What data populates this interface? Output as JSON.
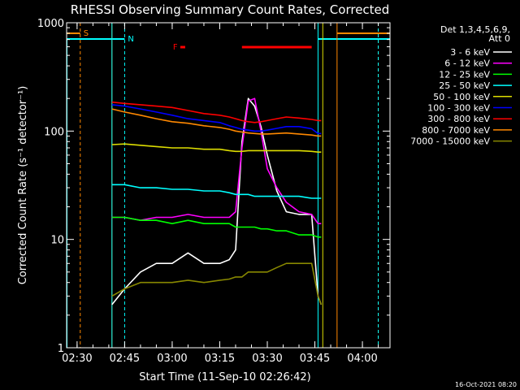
{
  "chart_data": {
    "type": "line",
    "title": "RHESSI Observing Summary Count Rates, Corrected",
    "xlabel": "Start Time (11-Sep-10 02:26:42)",
    "ylabel": "Corrected Count Rate (s⁻¹ detector⁻¹)",
    "y_scale": "log",
    "ylim": [
      1,
      1000
    ],
    "xlim_minutes_after_start": [
      0,
      102
    ],
    "x_ticks": [
      "02:30",
      "02:45",
      "03:00",
      "03:15",
      "03:30",
      "03:45",
      "04:00"
    ],
    "y_ticks": [
      "1",
      "10",
      "100",
      "1000"
    ],
    "legend_header": [
      "Det 1,3,4,5,6,9,",
      "Att 0"
    ],
    "legend_position": "top-right",
    "footer_date": "16-Oct-2021 08:20",
    "markers": {
      "saa": "S",
      "night": "N",
      "flare": "F"
    },
    "x_times": [
      "02:41",
      "02:45",
      "02:50",
      "02:55",
      "03:00",
      "03:05",
      "03:10",
      "03:15",
      "03:18",
      "03:20",
      "03:22",
      "03:24",
      "03:26",
      "03:28",
      "03:30",
      "03:33",
      "03:36",
      "03:40",
      "03:44",
      "03:46",
      "03:47"
    ],
    "series": [
      {
        "name": "3 - 6 keV",
        "color": "#ffffff",
        "values": [
          2.5,
          3.5,
          5,
          6,
          6,
          7.5,
          6,
          6,
          6.5,
          8,
          80,
          200,
          170,
          110,
          60,
          28,
          18,
          17,
          17,
          3,
          2.5
        ]
      },
      {
        "name": "6 - 12 keV",
        "color": "#ff00ff",
        "values": [
          16,
          16,
          15,
          16,
          16,
          17,
          16,
          16,
          16,
          18,
          70,
          190,
          200,
          100,
          45,
          30,
          22,
          18,
          17,
          14,
          14
        ]
      },
      {
        "name": "12 - 25 keV",
        "color": "#00ff00",
        "values": [
          16,
          16,
          15,
          15,
          14,
          15,
          14,
          14,
          14,
          13,
          13,
          13,
          13,
          12.5,
          12.5,
          12,
          12,
          11,
          11,
          10.5,
          10.5
        ]
      },
      {
        "name": "25 - 50 keV",
        "color": "#00ffff",
        "values": [
          32,
          32,
          30,
          30,
          29,
          29,
          28,
          28,
          27,
          26,
          26,
          26,
          25,
          25,
          25,
          25,
          25,
          25,
          24,
          24,
          24
        ]
      },
      {
        "name": "50 - 100 keV",
        "color": "#dddd00",
        "values": [
          75,
          76,
          74,
          72,
          70,
          70,
          68,
          68,
          66,
          65,
          65,
          66,
          66,
          66,
          66,
          66,
          66,
          66,
          65,
          64,
          64
        ]
      },
      {
        "name": "100 - 300 keV",
        "color": "#0000ff",
        "values": [
          175,
          170,
          160,
          150,
          140,
          130,
          125,
          120,
          112,
          108,
          104,
          102,
          100,
          100,
          102,
          106,
          110,
          110,
          105,
          95,
          95
        ]
      },
      {
        "name": "300 - 800 keV",
        "color": "#ff0000",
        "values": [
          185,
          180,
          175,
          170,
          165,
          155,
          145,
          140,
          135,
          130,
          125,
          122,
          120,
          122,
          125,
          130,
          135,
          132,
          128,
          125,
          125
        ]
      },
      {
        "name": "800 - 7000 keV",
        "color": "#ff8800",
        "values": [
          160,
          150,
          140,
          130,
          122,
          118,
          112,
          108,
          104,
          100,
          98,
          96,
          95,
          94,
          94,
          95,
          96,
          94,
          92,
          90,
          90
        ]
      },
      {
        "name": "7000 - 15000 keV",
        "color": "#888800",
        "values": [
          3,
          3.5,
          4,
          4,
          4,
          4.2,
          4,
          4.2,
          4.3,
          4.5,
          4.5,
          5,
          5,
          5,
          5,
          5.5,
          6,
          6,
          6,
          3,
          2.5
        ]
      }
    ]
  }
}
